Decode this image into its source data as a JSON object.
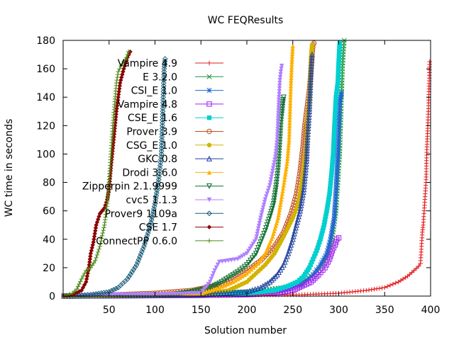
{
  "chart_data": {
    "type": "line",
    "title": "WC FEQResults",
    "xlabel": "Solution number",
    "ylabel": "WC time in seconds",
    "xlim": [
      0,
      400
    ],
    "ylim": [
      0,
      180
    ],
    "x_ticks": [
      50,
      100,
      150,
      200,
      250,
      300,
      350,
      400
    ],
    "y_ticks": [
      0,
      20,
      40,
      60,
      80,
      100,
      120,
      140,
      160,
      180
    ],
    "grid": false,
    "legend_position": "top-left",
    "series": [
      {
        "name": "Vampire 4.9",
        "color": "#e41a1c",
        "marker": "plus",
        "points": [
          [
            1,
            0
          ],
          [
            100,
            0.3
          ],
          [
            200,
            0.7
          ],
          [
            260,
            1
          ],
          [
            300,
            2
          ],
          [
            330,
            4
          ],
          [
            350,
            6
          ],
          [
            365,
            10
          ],
          [
            375,
            14
          ],
          [
            382,
            18
          ],
          [
            387,
            21
          ],
          [
            389,
            23
          ],
          [
            391,
            45
          ],
          [
            392,
            50
          ],
          [
            393,
            60
          ],
          [
            395,
            80
          ],
          [
            396,
            105
          ],
          [
            397,
            120
          ],
          [
            398,
            140
          ],
          [
            399,
            165
          ]
        ]
      },
      {
        "name": "E 3.2.0",
        "color": "#1a9641",
        "marker": "x",
        "points": [
          [
            1,
            0
          ],
          [
            100,
            1
          ],
          [
            150,
            2
          ],
          [
            200,
            3
          ],
          [
            240,
            6
          ],
          [
            260,
            10
          ],
          [
            275,
            16
          ],
          [
            285,
            25
          ],
          [
            290,
            32
          ],
          [
            294,
            45
          ],
          [
            297,
            60
          ],
          [
            299,
            80
          ],
          [
            301,
            100
          ],
          [
            302,
            120
          ],
          [
            303,
            140
          ],
          [
            304,
            160
          ],
          [
            305,
            172
          ],
          [
            306,
            180
          ]
        ]
      },
      {
        "name": "CSI_E 1.0",
        "color": "#1f64d4",
        "marker": "star",
        "points": [
          [
            1,
            0
          ],
          [
            150,
            1
          ],
          [
            200,
            2
          ],
          [
            240,
            4
          ],
          [
            260,
            8
          ],
          [
            272,
            15
          ],
          [
            280,
            22
          ],
          [
            287,
            30
          ],
          [
            291,
            40
          ],
          [
            295,
            55
          ],
          [
            297,
            75
          ],
          [
            299,
            100
          ],
          [
            300,
            120
          ],
          [
            301,
            135
          ],
          [
            302,
            140
          ],
          [
            303,
            143
          ]
        ]
      },
      {
        "name": "Vampire 4.8",
        "color": "#a020f0",
        "marker": "square",
        "points": [
          [
            1,
            0
          ],
          [
            150,
            0.5
          ],
          [
            200,
            1
          ],
          [
            230,
            2
          ],
          [
            250,
            4
          ],
          [
            260,
            7
          ],
          [
            270,
            10
          ],
          [
            278,
            15
          ],
          [
            285,
            20
          ],
          [
            290,
            26
          ],
          [
            293,
            32
          ],
          [
            296,
            36
          ],
          [
            298,
            40
          ],
          [
            300,
            41
          ]
        ]
      },
      {
        "name": "CSE_E 1.6",
        "color": "#00d0d0",
        "marker": "square-filled",
        "points": [
          [
            1,
            0
          ],
          [
            150,
            1
          ],
          [
            200,
            2
          ],
          [
            230,
            4
          ],
          [
            245,
            7
          ],
          [
            255,
            10
          ],
          [
            262,
            14
          ],
          [
            268,
            20
          ],
          [
            272,
            26
          ],
          [
            276,
            32
          ],
          [
            280,
            40
          ],
          [
            284,
            50
          ],
          [
            287,
            60
          ],
          [
            290,
            72
          ],
          [
            292,
            85
          ],
          [
            294,
            100
          ],
          [
            295,
            115
          ],
          [
            296,
            128
          ],
          [
            297,
            140
          ],
          [
            299,
            150
          ],
          [
            300,
            165
          ],
          [
            301,
            178
          ]
        ]
      },
      {
        "name": "Prover 3.9",
        "color": "#c0501a",
        "marker": "circle",
        "points": [
          [
            1,
            0
          ],
          [
            60,
            1
          ],
          [
            100,
            2
          ],
          [
            140,
            4
          ],
          [
            170,
            8
          ],
          [
            185,
            12
          ],
          [
            200,
            18
          ],
          [
            215,
            25
          ],
          [
            230,
            35
          ],
          [
            240,
            45
          ],
          [
            248,
            58
          ],
          [
            254,
            72
          ],
          [
            258,
            88
          ],
          [
            261,
            105
          ],
          [
            263,
            120
          ],
          [
            266,
            135
          ],
          [
            268,
            145
          ],
          [
            270,
            160
          ],
          [
            271,
            170
          ],
          [
            272,
            177
          ],
          [
            273,
            178
          ]
        ]
      },
      {
        "name": "CSG_E 1.0",
        "color": "#d2b400",
        "marker": "circle-filled",
        "points": [
          [
            1,
            0
          ],
          [
            150,
            1
          ],
          [
            180,
            4
          ],
          [
            200,
            10
          ],
          [
            210,
            16
          ],
          [
            220,
            22
          ],
          [
            230,
            30
          ],
          [
            240,
            42
          ],
          [
            250,
            55
          ],
          [
            256,
            65
          ],
          [
            260,
            80
          ],
          [
            263,
            95
          ],
          [
            265,
            110
          ],
          [
            266,
            125
          ],
          [
            268,
            140
          ],
          [
            269,
            158
          ],
          [
            270,
            170
          ],
          [
            271,
            177
          ]
        ]
      },
      {
        "name": "GKC 0.8",
        "color": "#1f3f9f",
        "marker": "triangle",
        "points": [
          [
            1,
            0
          ],
          [
            150,
            1
          ],
          [
            200,
            3
          ],
          [
            215,
            6
          ],
          [
            225,
            10
          ],
          [
            233,
            15
          ],
          [
            240,
            22
          ],
          [
            245,
            30
          ],
          [
            250,
            40
          ],
          [
            254,
            50
          ],
          [
            258,
            60
          ],
          [
            262,
            75
          ],
          [
            265,
            95
          ],
          [
            266,
            110
          ],
          [
            268,
            130
          ],
          [
            269,
            145
          ],
          [
            270,
            160
          ],
          [
            271,
            170
          ]
        ]
      },
      {
        "name": "Drodi 3.6.0",
        "color": "#ffb000",
        "marker": "triangle-filled",
        "points": [
          [
            1,
            0
          ],
          [
            150,
            2
          ],
          [
            170,
            6
          ],
          [
            185,
            10
          ],
          [
            200,
            16
          ],
          [
            212,
            23
          ],
          [
            220,
            30
          ],
          [
            228,
            42
          ],
          [
            234,
            55
          ],
          [
            238,
            70
          ],
          [
            241,
            82
          ],
          [
            244,
            95
          ],
          [
            246,
            110
          ],
          [
            247,
            130
          ],
          [
            248,
            150
          ],
          [
            249,
            165
          ],
          [
            250,
            176
          ]
        ]
      },
      {
        "name": "Zipperpin 2.1.9999",
        "color": "#0b6e2e",
        "marker": "triangle-down",
        "points": [
          [
            1,
            0
          ],
          [
            120,
            1
          ],
          [
            140,
            3
          ],
          [
            160,
            6
          ],
          [
            170,
            9
          ],
          [
            180,
            13
          ],
          [
            190,
            17
          ],
          [
            200,
            22
          ],
          [
            210,
            30
          ],
          [
            215,
            38
          ],
          [
            220,
            46
          ],
          [
            225,
            56
          ],
          [
            229,
            65
          ],
          [
            232,
            78
          ],
          [
            234,
            90
          ],
          [
            236,
            110
          ],
          [
            237,
            122
          ],
          [
            238,
            128
          ],
          [
            239,
            135
          ],
          [
            240,
            140
          ]
        ]
      },
      {
        "name": "cvc5 1.1.3",
        "color": "#b080ff",
        "marker": "triangle-down-filled",
        "points": [
          [
            1,
            0
          ],
          [
            60,
            1
          ],
          [
            100,
            1
          ],
          [
            150,
            2
          ],
          [
            160,
            10
          ],
          [
            165,
            18
          ],
          [
            170,
            24
          ],
          [
            180,
            25
          ],
          [
            190,
            26
          ],
          [
            200,
            30
          ],
          [
            210,
            40
          ],
          [
            215,
            55
          ],
          [
            220,
            68
          ],
          [
            225,
            78
          ],
          [
            228,
            88
          ],
          [
            231,
            98
          ],
          [
            233,
            110
          ],
          [
            234,
            125
          ],
          [
            235,
            140
          ],
          [
            236,
            152
          ],
          [
            237,
            158
          ],
          [
            238,
            162
          ]
        ]
      },
      {
        "name": "Prover9 1109a",
        "color": "#1d5f7a",
        "marker": "diamond",
        "points": [
          [
            1,
            0
          ],
          [
            30,
            1
          ],
          [
            50,
            3
          ],
          [
            60,
            6
          ],
          [
            70,
            12
          ],
          [
            80,
            22
          ],
          [
            88,
            35
          ],
          [
            95,
            50
          ],
          [
            100,
            65
          ],
          [
            104,
            82
          ],
          [
            107,
            100
          ],
          [
            108,
            120
          ],
          [
            109,
            140
          ],
          [
            110,
            160
          ],
          [
            111,
            167
          ]
        ]
      },
      {
        "name": "CSE 1.7",
        "color": "#8b0000",
        "marker": "diamond-filled",
        "points": [
          [
            1,
            0
          ],
          [
            10,
            1
          ],
          [
            20,
            4
          ],
          [
            25,
            10
          ],
          [
            28,
            20
          ],
          [
            30,
            30
          ],
          [
            33,
            38
          ],
          [
            36,
            50
          ],
          [
            40,
            58
          ],
          [
            45,
            62
          ],
          [
            48,
            68
          ],
          [
            50,
            75
          ],
          [
            52,
            90
          ],
          [
            55,
            110
          ],
          [
            58,
            130
          ],
          [
            62,
            150
          ],
          [
            66,
            160
          ],
          [
            70,
            168
          ],
          [
            73,
            172
          ]
        ]
      },
      {
        "name": "ConnectPP 0.6.0",
        "color": "#4d8a17",
        "marker": "plus",
        "points": [
          [
            1,
            0
          ],
          [
            10,
            2
          ],
          [
            15,
            5
          ],
          [
            20,
            12
          ],
          [
            25,
            18
          ],
          [
            30,
            20
          ],
          [
            35,
            25
          ],
          [
            40,
            35
          ],
          [
            45,
            50
          ],
          [
            48,
            65
          ],
          [
            50,
            80
          ],
          [
            52,
            100
          ],
          [
            54,
            120
          ],
          [
            56,
            135
          ],
          [
            58,
            150
          ],
          [
            60,
            158
          ],
          [
            63,
            162
          ],
          [
            66,
            165
          ],
          [
            69,
            168
          ],
          [
            71,
            172
          ]
        ]
      }
    ]
  }
}
